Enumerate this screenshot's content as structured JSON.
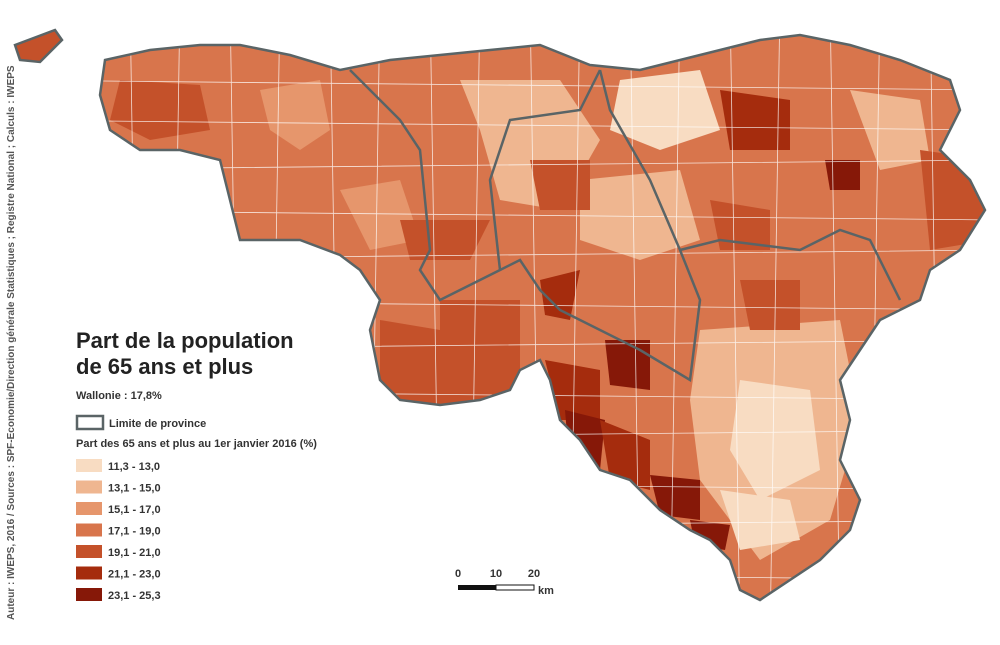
{
  "title_lines": [
    "Part de la population",
    "de 65 ans et plus"
  ],
  "subtitle": "Wallonie : 17,8%",
  "province_legend": "Limite de province",
  "legend": {
    "title": "Part des 65 ans et plus au 1er janvier 2016 (%)",
    "classes": [
      {
        "label": "11,3 - 13,0",
        "color": "#f8dcc2"
      },
      {
        "label": "13,1 - 15,0",
        "color": "#efb690"
      },
      {
        "label": "15,1 - 17,0",
        "color": "#e6966c"
      },
      {
        "label": "17,1 - 19,0",
        "color": "#d8754c"
      },
      {
        "label": "19,1 - 21,0",
        "color": "#c4512a"
      },
      {
        "label": "21,1 - 23,0",
        "color": "#a52c0d"
      },
      {
        "label": "23,1 - 25,3",
        "color": "#861808"
      }
    ]
  },
  "scale_bar": {
    "ticks": [
      0,
      10,
      20
    ],
    "unit": "km"
  },
  "source": "Auteur : IWEPS, 2016 / Sources : SPF-Economie/Direction générale Statistiques ; Registre National ; Calculs : IWEPS"
}
